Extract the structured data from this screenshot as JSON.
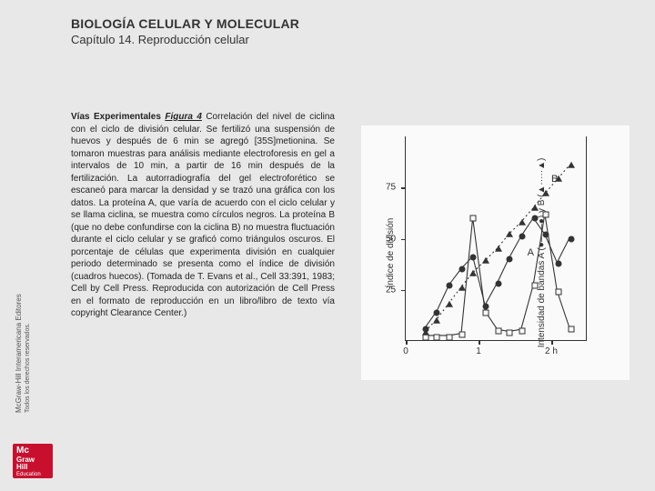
{
  "header": {
    "title": "BIOLOGÍA CELULAR Y MOLECULAR",
    "subtitle": "Capítulo 14. Reproducción celular"
  },
  "sidebar": {
    "publisher": "McGraw-Hill Interamericana Editores",
    "rights": "Todos los derechos reservados."
  },
  "logo": {
    "line1": "Mc",
    "line2": "Graw",
    "line3": "Hill",
    "line4": "Education"
  },
  "caption": {
    "lead": "Vías Experimentales ",
    "figure": "Figura 4",
    "body": " Correlación del nivel de ciclina con el ciclo de división celular. Se fertilizó una suspensión de huevos y después de 6 min se agregó [35S]metionina. Se tomaron muestras para análisis mediante electroforesis en gel a intervalos de 10 min, a partir de 16 min después de la fertilización. La autorradiografía del gel electroforético se escaneó para marcar la densidad y se trazó una gráfica con los datos. La proteína A, que varía de acuerdo con el ciclo celular y se llama ciclina, se muestra como círculos negros. La proteína B (que no debe confundirse con la ciclina B) no muestra fluctuación durante el ciclo celular y se graficó como triángulos oscuros. El porcentaje de células que experimenta división en cualquier periodo determinado se presenta como el índice de división (cuadros huecos). (Tomada de T. Evans et al., Cell 33:391, 1983; Cell by Cell Press. Reproducida con autorización de Cell Press en el formato de reproducción en un libro/libro de texto vía copyright Clearance Center.)"
  },
  "chart": {
    "type": "scatter-line",
    "background_color": "#fafafa",
    "axis_color": "#333333",
    "ylabel_left": "Índice de división",
    "ylabel_right": "Intensidad de bandas A (●——●) y B (▲·····▲)",
    "y_left": {
      "lim": [
        0,
        100
      ],
      "ticks": [
        25,
        50,
        75
      ]
    },
    "xlim_hours": [
      0,
      2.5
    ],
    "xticks": [
      {
        "pos": 0,
        "label": "0"
      },
      {
        "pos": 1,
        "label": "1"
      },
      {
        "pos": 2,
        "label": "2 h"
      }
    ],
    "series": {
      "division_index_squares": {
        "marker": "open-square",
        "color": "#333333",
        "line": "solid",
        "points": [
          [
            0.27,
            2
          ],
          [
            0.43,
            2
          ],
          [
            0.6,
            2
          ],
          [
            0.77,
            3
          ],
          [
            0.93,
            60
          ],
          [
            1.1,
            14
          ],
          [
            1.27,
            5
          ],
          [
            1.43,
            4
          ],
          [
            1.6,
            5
          ],
          [
            1.77,
            27
          ],
          [
            1.93,
            62
          ],
          [
            2.1,
            24
          ],
          [
            2.27,
            6
          ]
        ]
      },
      "protein_A_circles": {
        "marker": "filled-circle",
        "color": "#333333",
        "line": "solid",
        "points": [
          [
            0.27,
            6
          ],
          [
            0.43,
            14
          ],
          [
            0.6,
            27
          ],
          [
            0.77,
            35
          ],
          [
            0.93,
            41
          ],
          [
            1.1,
            17
          ],
          [
            1.27,
            28
          ],
          [
            1.43,
            40
          ],
          [
            1.6,
            51
          ],
          [
            1.77,
            60
          ],
          [
            1.93,
            52
          ],
          [
            2.1,
            38
          ],
          [
            2.27,
            50
          ]
        ]
      },
      "protein_B_triangles": {
        "marker": "filled-triangle",
        "color": "#333333",
        "line": "dotted",
        "points": [
          [
            0.27,
            4
          ],
          [
            0.43,
            10
          ],
          [
            0.6,
            18
          ],
          [
            0.77,
            26
          ],
          [
            0.93,
            33
          ],
          [
            1.1,
            39
          ],
          [
            1.27,
            45
          ],
          [
            1.43,
            52
          ],
          [
            1.6,
            58
          ],
          [
            1.77,
            65
          ],
          [
            1.93,
            72
          ],
          [
            2.1,
            79
          ],
          [
            2.27,
            86
          ]
        ]
      }
    },
    "annotations": {
      "A": [
        1.62,
        44
      ],
      "B": [
        1.95,
        80
      ]
    },
    "fontsize_axis": 10
  }
}
